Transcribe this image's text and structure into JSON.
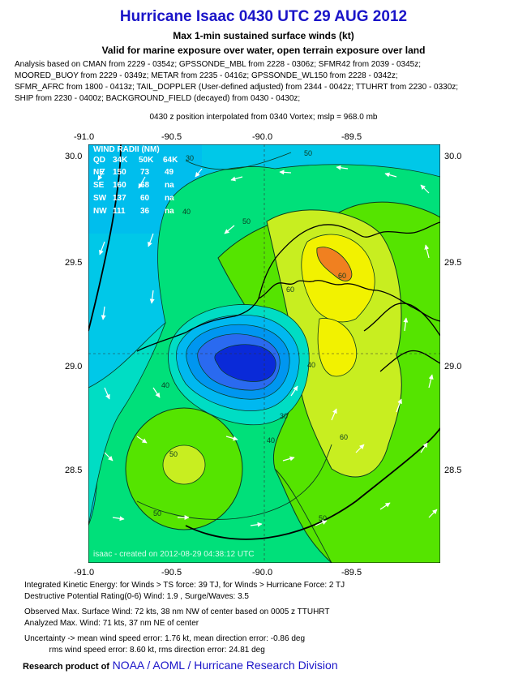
{
  "title": "Hurricane Isaac 0430 UTC 29 AUG 2012",
  "subtitle1": "Max 1-min sustained surface winds (kt)",
  "subtitle2": "Valid for marine exposure over water, open terrain exposure over land",
  "analysis_lines": [
    "Analysis based on CMAN from 2229 - 0354z; GPSSONDE_MBL from 2228 - 0306z; SFMR42 from 2039 - 0345z;",
    "MOORED_BUOY from 2229 - 0349z; METAR from 2235 - 0416z; GPSSONDE_WL150 from 2228 - 0342z;",
    "SFMR_AFRC from 1800 - 0413z; TAIL_DOPPLER (User-defined adjusted) from 2344 - 0042z; TTUHRT from 2230 - 0330z;",
    "SHIP from 2230 - 0400z; BACKGROUND_FIELD (decayed) from 0430 - 0430z;"
  ],
  "position_note": "0430 z position interpolated from 0340 Vortex; mslp = 968.0 mb",
  "axes": {
    "lon_ticks": [
      "-91.0",
      "-90.5",
      "-90.0",
      "-89.5"
    ],
    "lat_ticks": [
      "30.0",
      "29.5",
      "29.0",
      "28.5"
    ],
    "lon_range": [
      -91.0,
      -89.0
    ],
    "lat_range": [
      28.05,
      30.1
    ]
  },
  "wind_radii": {
    "header": "WIND RADII (NM)",
    "columns": [
      "QD",
      "34K",
      "50K",
      "64K"
    ],
    "rows": [
      [
        "NE",
        "150",
        "73",
        "49"
      ],
      [
        "SE",
        "160",
        "68",
        "na"
      ],
      [
        "SW",
        "137",
        "60",
        "na"
      ],
      [
        "NW",
        "111",
        "36",
        "na"
      ]
    ]
  },
  "contour_labels": [
    "30",
    "30",
    "40",
    "40",
    "40",
    "40",
    "50",
    "50",
    "50",
    "50",
    "60",
    "60",
    "60",
    "50"
  ],
  "watermark": "isaac - created on 2012-08-29 04:38:12 UTC",
  "stats": [
    "Integrated Kinetic Energy: for Winds > TS force: 39 TJ, for Winds > Hurricane Force: 2 TJ",
    "Destructive Potential Rating(0-6)  Wind: 1.9 , Surge/Waves: 3.5",
    "Observed Max. Surface Wind: 72 kts, 38 nm NW of center based on 0005 z TTUHRT",
    "Analyzed Max. Wind: 71 kts, 37 nm  NE of center",
    "Uncertainty -> mean wind speed error: 1.76 kt, mean direction error:  -0.86 deg",
    "           rms wind speed error: 8.60 kt, rms direction error: 24.81 deg"
  ],
  "footer": {
    "label": "Research product of",
    "link": "NOAA  /  AOML  /  Hurricane Research Division"
  },
  "colors": {
    "title": "#1a14c8",
    "band_20": "#00c8e8",
    "band_30": "#00ddc4",
    "band_40": "#00e07a",
    "band_50": "#55e400",
    "band_60": "#c8ee20",
    "band_65": "#f2f200",
    "band_70": "#f08020",
    "core_dark": "#0a2ad8"
  }
}
